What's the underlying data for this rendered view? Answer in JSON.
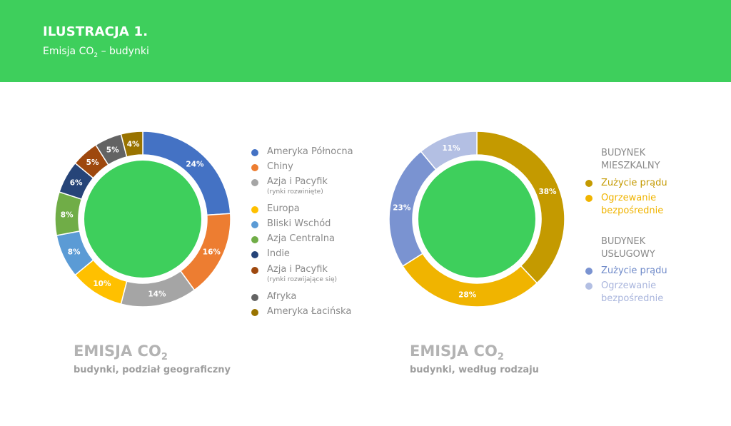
{
  "header": {
    "title": "ILUSTRACJA 1.",
    "subtitle_pre": "Emisja CO",
    "subtitle_sub": "2",
    "subtitle_post": " – budynki"
  },
  "colors": {
    "header_bg": "#3ecf5c",
    "donut_center": "#3ecf5c"
  },
  "chart_data": [
    {
      "type": "pie",
      "variant": "donut",
      "title_pre": "EMISJA CO",
      "title_sub": "2",
      "subtitle": "budynki, podział geograficzny",
      "categories": [
        "Ameryka Północna",
        "Chiny",
        "Azja i Pacyfik",
        "Europa",
        "Bliski Wschód",
        "Azja Centralna",
        "Indie",
        "Azja i Pacyfik",
        "Afryka",
        "Ameryka Łacińska"
      ],
      "category_notes": [
        "",
        "",
        "(rynki rozwinięte)",
        "",
        "",
        "",
        "",
        "(rynki rozwijające się)",
        "",
        ""
      ],
      "values": [
        24,
        16,
        14,
        10,
        8,
        8,
        6,
        5,
        5,
        4
      ],
      "data_labels": [
        "24%",
        "16%",
        "14%",
        "10%",
        "8%",
        "8%",
        "6%",
        "5%",
        "5%",
        "4%"
      ],
      "colors": [
        "#4472c4",
        "#ed7d31",
        "#a5a5a5",
        "#ffc000",
        "#5b9bd5",
        "#70ad47",
        "#264478",
        "#9e480e",
        "#636363",
        "#997300"
      ],
      "legend_position": "right"
    },
    {
      "type": "pie",
      "variant": "donut",
      "title_pre": "EMISJA CO",
      "title_sub": "2",
      "subtitle": "budynki, według rodzaju",
      "groups": [
        {
          "name_lines": [
            "BUDYNEK",
            "MIESZKALNY"
          ],
          "categories": [
            "Zużycie prądu",
            "Ogrzewanie bezpośrednie"
          ],
          "values": [
            38,
            28
          ],
          "colors": [
            "#c49a00",
            "#f0b400"
          ]
        },
        {
          "name_lines": [
            "BUDYNEK",
            "USŁUGOWY"
          ],
          "categories": [
            "Zużycie prądu",
            "Ogrzewanie bezpośrednie"
          ],
          "values": [
            23,
            11
          ],
          "colors": [
            "#7a93d1",
            "#b3bfe3"
          ]
        }
      ],
      "legend_lines": [
        [
          "Zużycie prądu"
        ],
        [
          "Ogrzewanie",
          "bezpośrednie"
        ],
        [
          "Zużycie prądu"
        ],
        [
          "Ogrzewanie",
          "bezpośrednie"
        ]
      ],
      "slice_order_values": [
        38,
        28,
        23,
        11
      ],
      "data_labels": [
        "38%",
        "28%",
        "23%",
        "11%"
      ],
      "colors": [
        "#c49a00",
        "#f0b400",
        "#7a93d1",
        "#b3bfe3"
      ],
      "legend_position": "right"
    }
  ]
}
